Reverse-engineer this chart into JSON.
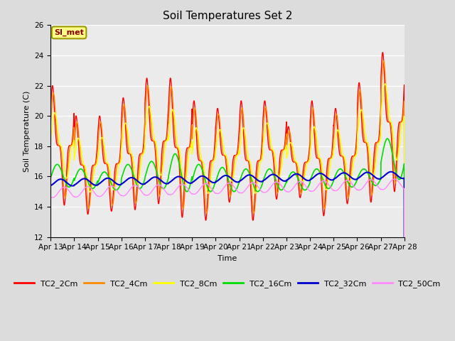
{
  "title": "Soil Temperatures Set 2",
  "xlabel": "Time",
  "ylabel": "Soil Temperature (C)",
  "ylim": [
    12,
    26
  ],
  "yticks": [
    12,
    14,
    16,
    18,
    20,
    22,
    24,
    26
  ],
  "annotation": "SI_met",
  "series_colors": {
    "TC2_2Cm": "#FF0000",
    "TC2_4Cm": "#FF8800",
    "TC2_8Cm": "#FFFF00",
    "TC2_16Cm": "#00DD00",
    "TC2_32Cm": "#0000CC",
    "TC2_50Cm": "#FF88FF"
  },
  "bg_color": "#DCDCDC",
  "inner_bg_color": "#EBEBEB",
  "n_days": 15,
  "start_day": 13,
  "points_per_day": 144
}
